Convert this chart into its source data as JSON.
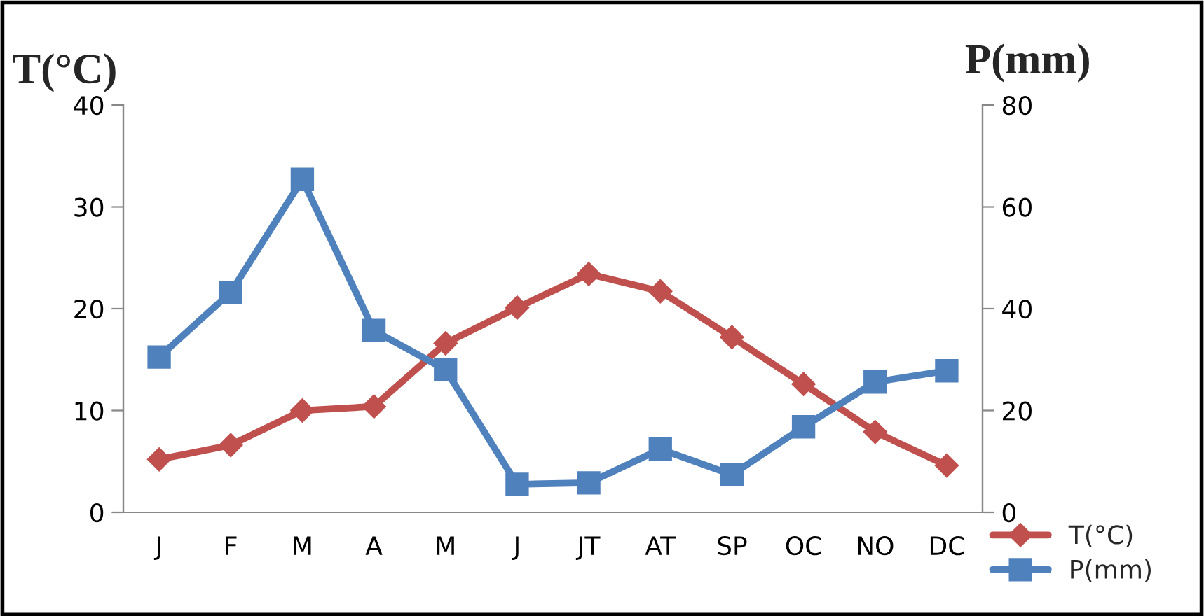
{
  "chart_data": {
    "type": "line",
    "ylabel": "T(°C)",
    "y2label": "P(mm)",
    "categories": [
      "J",
      "F",
      "M",
      "A",
      "M",
      "J",
      "JT",
      "AT",
      "SP",
      "OC",
      "NO",
      "DC"
    ],
    "series": [
      {
        "name": "T(°C)",
        "color": "#c0504d",
        "marker": "diamond",
        "values": [
          5.2,
          6.6,
          10,
          10.4,
          16.6,
          20.1,
          23.4,
          21.7,
          17.2,
          12.6,
          7.9,
          4.6
        ]
      },
      {
        "name": "P(mm)",
        "color": "#4f81bd",
        "marker": "square",
        "axis": "y2",
        "values": [
          30.5,
          43.2,
          65.4,
          35.7,
          28,
          5.5,
          5.8,
          12.4,
          7.4,
          16.8,
          25.6,
          27.8
        ]
      }
    ],
    "ylim": [
      0,
      40
    ],
    "yticks": [
      0,
      10,
      20,
      30,
      40
    ],
    "y2lim": [
      0,
      80
    ],
    "y2ticks": [
      0,
      20,
      40,
      60,
      80
    ],
    "grid": false,
    "legend": "bottom right"
  }
}
